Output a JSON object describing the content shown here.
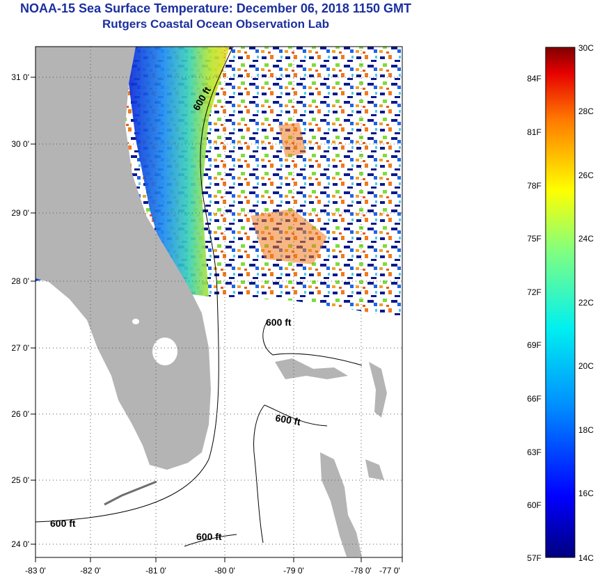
{
  "title": {
    "line1": "NOAA-15 Sea Surface Temperature:  December 06, 2018 1150 GMT",
    "line2": "Rutgers Coastal Ocean Observation Lab"
  },
  "map": {
    "lat_labels": [
      "31 0'",
      "30 0'",
      "29 0'",
      "28 0'",
      "27 0'",
      "26 0'",
      "25 0'",
      "24 0'"
    ],
    "lon_labels": [
      "-83 0'",
      "-82 0'",
      "-81 0'",
      "-80 0'",
      "-79 0'",
      "-78 0'",
      "-77 0'"
    ],
    "contour_label": "600 ft"
  },
  "colorbar": {
    "f_labels": [
      "84F",
      "81F",
      "78F",
      "75F",
      "72F",
      "69F",
      "66F",
      "63F",
      "60F",
      "57F"
    ],
    "c_labels": [
      "30C",
      "28C",
      "26C",
      "24C",
      "22C",
      "20C",
      "18C",
      "16C",
      "14C"
    ]
  },
  "colors": {
    "title": "#1b2f9e",
    "land": "#b4b4b4",
    "cold": "#0a1a8c",
    "warm": "#f07a1e"
  }
}
